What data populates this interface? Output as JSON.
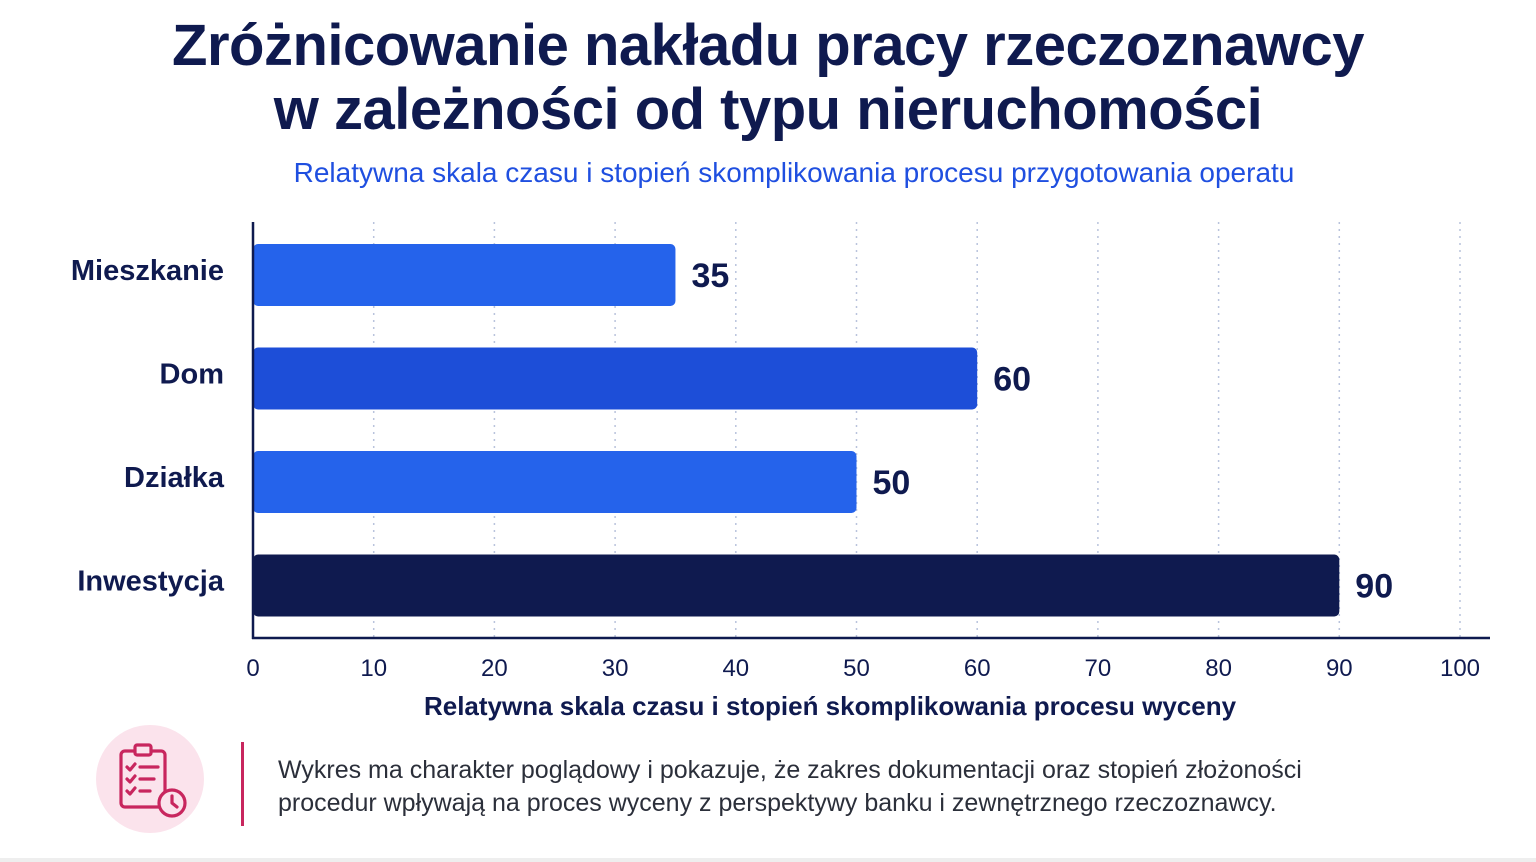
{
  "title_lines": [
    "Zróżnicowanie nakładu pracy rzeczoznawcy",
    "w zależności od typu nieruchomości"
  ],
  "subtitle": "Relatywna skala czasu i stopień skomplikowania procesu przygotowania operatu",
  "chart_data": {
    "type": "bar",
    "orientation": "horizontal",
    "categories": [
      "Mieszkanie",
      "Dom",
      "Działka",
      "Inwestycja"
    ],
    "values": [
      35,
      60,
      50,
      90
    ],
    "bar_colors": [
      "#2563eb",
      "#1d4ed8",
      "#2563eb",
      "#0f1a4f"
    ],
    "xlabel": "Relatywna skala czasu i stopień skomplikowania procesu wyceny",
    "ylabel": "",
    "xlim": [
      0,
      100
    ],
    "xticks": [
      0,
      10,
      20,
      30,
      40,
      50,
      60,
      70,
      80,
      90,
      100
    ],
    "grid": "vertical dotted",
    "data_labels": true
  },
  "footnote": {
    "icon": "clipboard-clock-icon",
    "lines": [
      "Wykres ma charakter poglądowy i pokazuje, że zakres dokumentacji oraz stopień złożoności",
      "procedur wpływają na proces wyceny z perspektywy banku i zewnętrznego rzeczoznawcy."
    ]
  },
  "colors": {
    "title": "#0f1a4f",
    "subtitle": "#1f4fe0",
    "axis": "#0f1a4f",
    "grid": "#b9c3dc",
    "accent": "#c8265e",
    "icon_bg": "#fbe3ec"
  }
}
